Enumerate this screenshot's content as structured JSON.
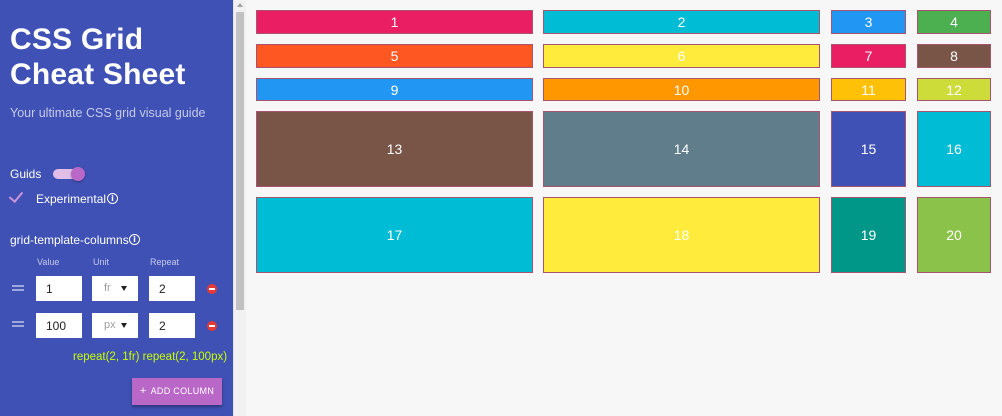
{
  "sidebar": {
    "title_line1": "CSS Grid",
    "title_line2": "Cheat Sheet",
    "subtitle": "Your ultimate CSS grid visual guide",
    "guides_label": "Guids",
    "guides_enabled": true,
    "experimental_label": "Experimental",
    "experimental_checked": true,
    "section_title": "grid-template-columns",
    "column_headers": {
      "value": "Value",
      "unit": "Unit",
      "repeat": "Repeat"
    },
    "columns": [
      {
        "value": "1",
        "unit": "fr",
        "repeat": "2"
      },
      {
        "value": "100",
        "unit": "px",
        "repeat": "2"
      }
    ],
    "css_output": "repeat(2, 1fr) repeat(2, 100px)",
    "add_column_label": "ADD COLUMN"
  },
  "grid": {
    "items": [
      {
        "label": "1",
        "color": "#e91e63"
      },
      {
        "label": "2",
        "color": "#00bcd4"
      },
      {
        "label": "3",
        "color": "#2196f3"
      },
      {
        "label": "4",
        "color": "#4caf50"
      },
      {
        "label": "5",
        "color": "#ff5722"
      },
      {
        "label": "6",
        "color": "#ffeb3b"
      },
      {
        "label": "7",
        "color": "#e91e63"
      },
      {
        "label": "8",
        "color": "#795548"
      },
      {
        "label": "9",
        "color": "#2196f3"
      },
      {
        "label": "10",
        "color": "#ff9800"
      },
      {
        "label": "11",
        "color": "#ffc107"
      },
      {
        "label": "12",
        "color": "#cddc39"
      },
      {
        "label": "13",
        "color": "#795548"
      },
      {
        "label": "14",
        "color": "#607d8b"
      },
      {
        "label": "15",
        "color": "#3f51b5"
      },
      {
        "label": "16",
        "color": "#00bcd4"
      },
      {
        "label": "17",
        "color": "#00bcd4"
      },
      {
        "label": "18",
        "color": "#ffeb3b"
      },
      {
        "label": "19",
        "color": "#009688"
      },
      {
        "label": "20",
        "color": "#8bc34a"
      }
    ]
  }
}
